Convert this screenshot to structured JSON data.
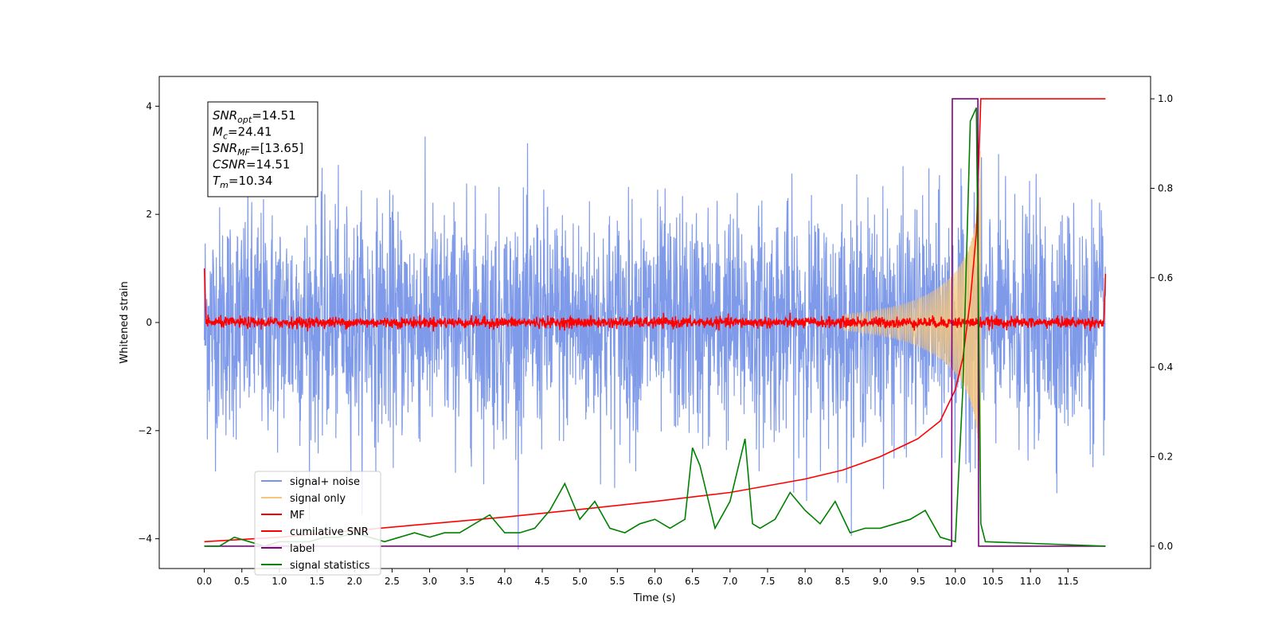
{
  "chart_data": {
    "type": "line",
    "title": "",
    "xlabel": "Time (s)",
    "ylabel": "Whitened strain",
    "xlim": [
      -0.6,
      12.6
    ],
    "ylim": [
      -4.55,
      4.55
    ],
    "y2lim": [
      -0.05,
      1.05
    ],
    "x_ticks": [
      "0.0",
      "0.5",
      "1.0",
      "1.5",
      "2.0",
      "2.5",
      "3.0",
      "3.5",
      "4.0",
      "4.5",
      "5.0",
      "5.5",
      "6.0",
      "6.5",
      "7.0",
      "7.5",
      "8.0",
      "8.5",
      "9.0",
      "9.5",
      "10.0",
      "10.5",
      "11.0",
      "11.5"
    ],
    "y_ticks": [
      "4",
      "2",
      "0",
      "−2",
      "−4"
    ],
    "y2_ticks": [
      "1.0",
      "0.8",
      "0.6",
      "0.4",
      "0.2",
      "0.0"
    ],
    "grid": false,
    "legend_position": "lower-left",
    "annotation": {
      "lines": [
        {
          "sym": "SNR",
          "sub": "opt",
          "val": "=14.51"
        },
        {
          "sym": "M",
          "sub": "c",
          "val": "=24.41"
        },
        {
          "sym": "SNR",
          "sub": "MF",
          "val": "=[13.65]"
        },
        {
          "sym": "CSNR",
          "sub": "",
          "val": "=14.51"
        },
        {
          "sym": "T",
          "sub": "m",
          "val": "=10.34"
        }
      ]
    },
    "series": [
      {
        "name": "signal+ noise",
        "color": "#7895e8",
        "axis": "left",
        "description_range": [
          -4.2,
          4.1
        ]
      },
      {
        "name": "signal only",
        "color": "#f5c77e",
        "axis": "left",
        "chirp_end": 10.34
      },
      {
        "name": "MF",
        "color": "#ff0000",
        "axis": "left"
      },
      {
        "name": "cumilative SNR",
        "color": "#ff0000",
        "axis": "right",
        "x": [
          0,
          1,
          2,
          3,
          4,
          5,
          6,
          7,
          8,
          8.5,
          9,
          9.5,
          9.8,
          10.0,
          10.1,
          10.2,
          10.28,
          10.34,
          10.4,
          12.0
        ],
        "y": [
          0.01,
          0.02,
          0.035,
          0.05,
          0.065,
          0.082,
          0.1,
          0.12,
          0.15,
          0.17,
          0.2,
          0.24,
          0.28,
          0.35,
          0.42,
          0.55,
          0.7,
          1.0,
          1.0,
          1.0
        ]
      },
      {
        "name": "label",
        "color": "#800080",
        "axis": "right",
        "x": [
          0,
          9.95,
          9.96,
          10.3,
          10.31,
          12.0
        ],
        "y": [
          0,
          0,
          1,
          1,
          0,
          0
        ]
      },
      {
        "name": "signal statistics",
        "color": "#008000",
        "axis": "right",
        "x": [
          0,
          0.2,
          0.4,
          0.6,
          0.8,
          1.0,
          1.2,
          1.4,
          1.6,
          1.8,
          2.0,
          2.2,
          2.4,
          2.6,
          2.8,
          3.0,
          3.2,
          3.4,
          3.6,
          3.8,
          4.0,
          4.2,
          4.4,
          4.6,
          4.8,
          5.0,
          5.2,
          5.4,
          5.6,
          5.8,
          6.0,
          6.2,
          6.4,
          6.5,
          6.6,
          6.8,
          7.0,
          7.2,
          7.3,
          7.4,
          7.6,
          7.8,
          8.0,
          8.2,
          8.4,
          8.6,
          8.8,
          9.0,
          9.2,
          9.4,
          9.6,
          9.8,
          10.0,
          10.1,
          10.2,
          10.28,
          10.34,
          10.4,
          12.0
        ],
        "y": [
          0.0,
          0.0,
          0.02,
          0.01,
          0.0,
          0.01,
          0.01,
          0.01,
          0.02,
          0.02,
          0.03,
          0.02,
          0.01,
          0.02,
          0.03,
          0.02,
          0.03,
          0.03,
          0.05,
          0.07,
          0.03,
          0.03,
          0.04,
          0.08,
          0.14,
          0.06,
          0.1,
          0.04,
          0.03,
          0.05,
          0.06,
          0.04,
          0.06,
          0.22,
          0.18,
          0.04,
          0.1,
          0.24,
          0.05,
          0.04,
          0.06,
          0.12,
          0.08,
          0.05,
          0.1,
          0.03,
          0.04,
          0.04,
          0.05,
          0.06,
          0.08,
          0.02,
          0.01,
          0.35,
          0.95,
          0.98,
          0.05,
          0.01,
          0.0
        ]
      }
    ]
  }
}
